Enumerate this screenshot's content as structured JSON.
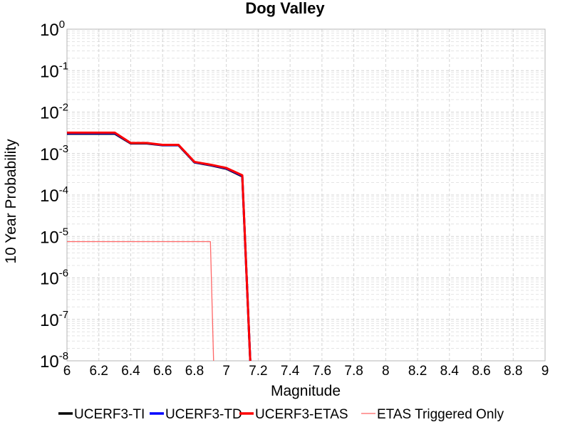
{
  "chart_data": {
    "type": "line",
    "title": "Dog Valley",
    "xlabel": "Magnitude",
    "ylabel": "10 Year Probability",
    "xlim": [
      6,
      9
    ],
    "ylim": [
      1e-08,
      1
    ],
    "yscale": "log",
    "grid": true,
    "legend_position": "bottom",
    "x_ticks": [
      "6",
      "6.2",
      "6.4",
      "6.6",
      "6.8",
      "7",
      "7.2",
      "7.4",
      "7.6",
      "7.8",
      "8",
      "8.2",
      "8.4",
      "8.6",
      "8.8",
      "9"
    ],
    "y_tick_exponents": [
      "0",
      "-1",
      "-2",
      "-3",
      "-4",
      "-5",
      "-6",
      "-7",
      "-8"
    ],
    "y_tick_base": "10",
    "series": [
      {
        "name": "UCERF3-TI",
        "color": "#000000",
        "width": 3,
        "points": [
          [
            6.0,
            0.003
          ],
          [
            6.3,
            0.003
          ],
          [
            6.4,
            0.00175
          ],
          [
            6.5,
            0.00175
          ],
          [
            6.6,
            0.00158
          ],
          [
            6.7,
            0.00158
          ],
          [
            6.8,
            0.00061
          ],
          [
            6.9,
            0.00052
          ],
          [
            7.0,
            0.00043
          ],
          [
            7.1,
            0.00028
          ],
          [
            7.15,
            1e-08
          ]
        ]
      },
      {
        "name": "UCERF3-TD",
        "color": "#0000ff",
        "width": 3,
        "points": [
          [
            6.0,
            0.0031
          ],
          [
            6.3,
            0.0031
          ],
          [
            6.4,
            0.00178
          ],
          [
            6.5,
            0.00178
          ],
          [
            6.6,
            0.0016
          ],
          [
            6.7,
            0.0016
          ],
          [
            6.8,
            0.00062
          ],
          [
            6.9,
            0.00053
          ],
          [
            7.0,
            0.00044
          ],
          [
            7.1,
            0.00029
          ],
          [
            7.15,
            1e-08
          ]
        ]
      },
      {
        "name": "UCERF3-ETAS",
        "color": "#ff0000",
        "width": 3,
        "points": [
          [
            6.0,
            0.0032
          ],
          [
            6.3,
            0.0032
          ],
          [
            6.4,
            0.0018
          ],
          [
            6.5,
            0.0018
          ],
          [
            6.6,
            0.00162
          ],
          [
            6.7,
            0.00162
          ],
          [
            6.8,
            0.00063
          ],
          [
            6.9,
            0.00054
          ],
          [
            7.0,
            0.00045
          ],
          [
            7.1,
            0.0003
          ],
          [
            7.15,
            1e-08
          ]
        ]
      },
      {
        "name": "ETAS Triggered Only",
        "color": "#ff6666",
        "width": 1.3,
        "points": [
          [
            6.0,
            7.5e-06
          ],
          [
            6.9,
            7.5e-06
          ],
          [
            6.92,
            1e-08
          ]
        ]
      }
    ]
  }
}
